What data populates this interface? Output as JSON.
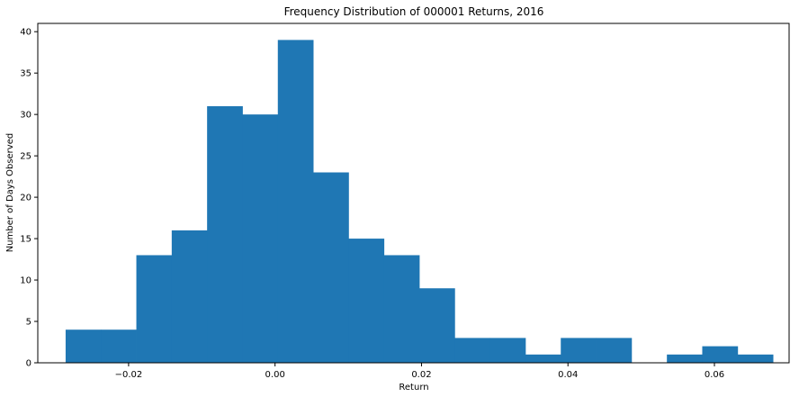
{
  "chart_data": {
    "type": "bar",
    "title": "Frequency Distribution of 000001 Returns, 2016",
    "xlabel": "Return",
    "ylabel": "Number of Days Observed",
    "xlim": [
      -0.0324,
      0.0702
    ],
    "ylim": [
      0,
      41
    ],
    "xticks": [
      -0.02,
      0.0,
      0.02,
      0.04,
      0.06
    ],
    "xtick_labels": [
      "−0.02",
      "0.00",
      "0.02",
      "0.04",
      "0.06"
    ],
    "yticks": [
      0,
      5,
      10,
      15,
      20,
      25,
      30,
      35,
      40
    ],
    "ytick_labels": [
      "0",
      "5",
      "10",
      "15",
      "20",
      "25",
      "30",
      "35",
      "40"
    ],
    "bin_edges": [
      -0.0286,
      -0.02377,
      -0.01894,
      -0.01411,
      -0.00928,
      -0.00445,
      0.00038,
      0.00521,
      0.01004,
      0.01487,
      0.0197,
      0.02453,
      0.02936,
      0.03419,
      0.03902,
      0.04385,
      0.04868,
      0.05351,
      0.05834,
      0.06317,
      0.068
    ],
    "values": [
      4,
      4,
      13,
      16,
      31,
      30,
      39,
      23,
      15,
      13,
      9,
      3,
      3,
      1,
      3,
      3,
      0,
      1,
      2,
      1
    ],
    "bar_color": "#1f77b4",
    "grid": false
  }
}
